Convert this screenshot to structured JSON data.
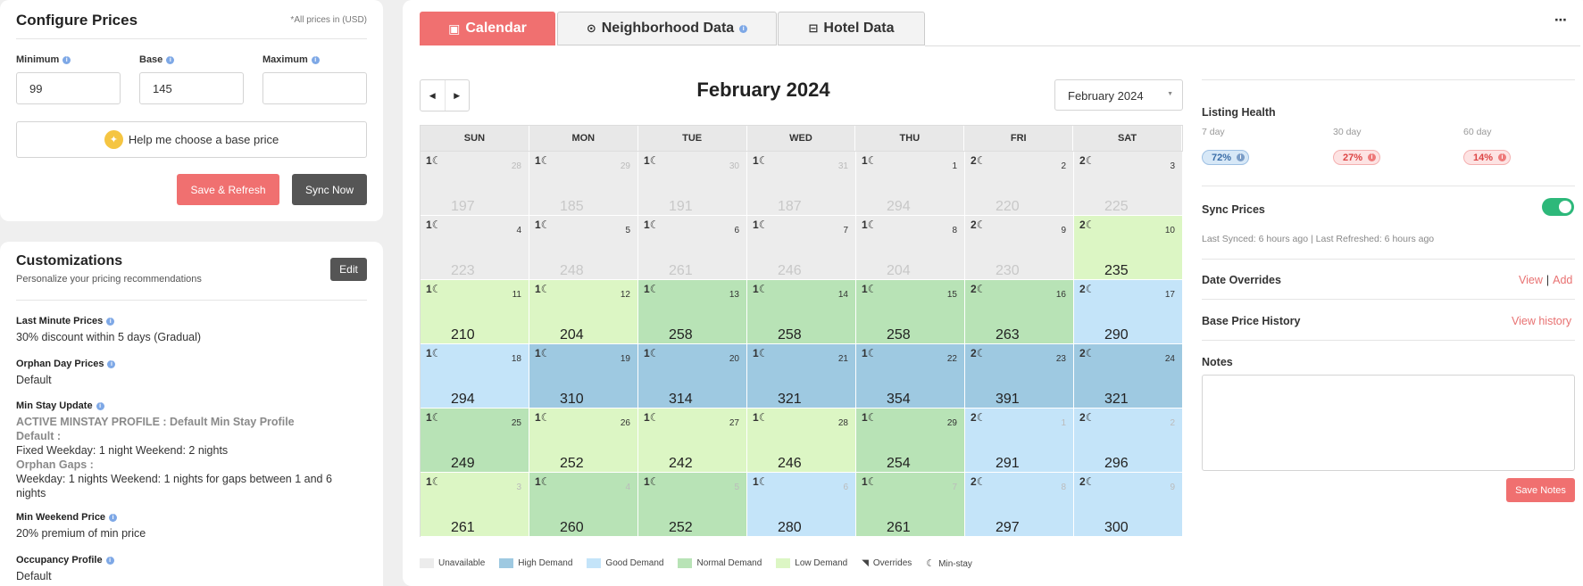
{
  "config": {
    "title": "Configure Prices",
    "currency_note": "*All prices in (USD)",
    "minimum_label": "Minimum",
    "base_label": "Base",
    "maximum_label": "Maximum",
    "minimum_value": "99",
    "base_value": "145",
    "maximum_value": "",
    "help_button": "Help me choose a base price",
    "save_refresh": "Save & Refresh",
    "sync_now": "Sync Now"
  },
  "customizations": {
    "title": "Customizations",
    "subtitle": "Personalize your pricing recommendations",
    "edit": "Edit",
    "last_minute": {
      "title": "Last Minute Prices",
      "value": "30% discount within 5 days (Gradual)"
    },
    "orphan_day": {
      "title": "Orphan Day Prices",
      "value": "Default"
    },
    "min_stay": {
      "title": "Min Stay Update",
      "profile": "ACTIVE MINSTAY PROFILE : Default Min Stay Profile",
      "default_label": "Default :",
      "default_value": "Fixed Weekday: 1 night Weekend: 2 nights",
      "orphan_label": "Orphan Gaps :",
      "orphan_value": "Weekday: 1 nights Weekend: 1 nights for gaps between 1 and 6 nights"
    },
    "min_weekend": {
      "title": "Min Weekend Price",
      "value": "20% premium of min price"
    },
    "occupancy": {
      "title": "Occupancy Profile",
      "value": "Default"
    }
  },
  "tabs": {
    "calendar": "Calendar",
    "neighborhood": "Neighborhood Data",
    "hotel": "Hotel Data"
  },
  "calendar": {
    "month_title": "February 2024",
    "month_select": "February 2024",
    "days_of_week": [
      "SUN",
      "MON",
      "TUE",
      "WED",
      "THU",
      "FRI",
      "SAT"
    ],
    "cells": [
      {
        "day": "28",
        "minstay": "1",
        "price": "197",
        "demand": "grey",
        "out": true
      },
      {
        "day": "29",
        "minstay": "1",
        "price": "185",
        "demand": "grey",
        "out": true
      },
      {
        "day": "30",
        "minstay": "1",
        "price": "191",
        "demand": "grey",
        "out": true
      },
      {
        "day": "31",
        "minstay": "1",
        "price": "187",
        "demand": "grey",
        "out": true
      },
      {
        "day": "1",
        "minstay": "1",
        "price": "294",
        "demand": "grey",
        "out": false
      },
      {
        "day": "2",
        "minstay": "2",
        "price": "220",
        "demand": "grey",
        "out": false
      },
      {
        "day": "3",
        "minstay": "2",
        "price": "225",
        "demand": "grey",
        "out": false
      },
      {
        "day": "4",
        "minstay": "1",
        "price": "223",
        "demand": "grey",
        "out": false
      },
      {
        "day": "5",
        "minstay": "1",
        "price": "248",
        "demand": "grey",
        "out": false
      },
      {
        "day": "6",
        "minstay": "1",
        "price": "261",
        "demand": "grey",
        "out": false
      },
      {
        "day": "7",
        "minstay": "1",
        "price": "246",
        "demand": "grey",
        "out": false
      },
      {
        "day": "8",
        "minstay": "1",
        "price": "204",
        "demand": "grey",
        "out": false
      },
      {
        "day": "9",
        "minstay": "2",
        "price": "230",
        "demand": "grey",
        "out": false
      },
      {
        "day": "10",
        "minstay": "2",
        "price": "235",
        "demand": "low",
        "out": false
      },
      {
        "day": "11",
        "minstay": "1",
        "price": "210",
        "demand": "low",
        "out": false
      },
      {
        "day": "12",
        "minstay": "1",
        "price": "204",
        "demand": "low",
        "out": false
      },
      {
        "day": "13",
        "minstay": "1",
        "price": "258",
        "demand": "normal",
        "out": false
      },
      {
        "day": "14",
        "minstay": "1",
        "price": "258",
        "demand": "normal",
        "out": false
      },
      {
        "day": "15",
        "minstay": "1",
        "price": "258",
        "demand": "normal",
        "out": false
      },
      {
        "day": "16",
        "minstay": "2",
        "price": "263",
        "demand": "normal",
        "out": false
      },
      {
        "day": "17",
        "minstay": "2",
        "price": "290",
        "demand": "good",
        "out": false
      },
      {
        "day": "18",
        "minstay": "1",
        "price": "294",
        "demand": "good",
        "out": false
      },
      {
        "day": "19",
        "minstay": "1",
        "price": "310",
        "demand": "high",
        "out": false
      },
      {
        "day": "20",
        "minstay": "1",
        "price": "314",
        "demand": "high",
        "out": false
      },
      {
        "day": "21",
        "minstay": "1",
        "price": "321",
        "demand": "high",
        "out": false
      },
      {
        "day": "22",
        "minstay": "1",
        "price": "354",
        "demand": "high",
        "out": false
      },
      {
        "day": "23",
        "minstay": "2",
        "price": "391",
        "demand": "high",
        "out": false
      },
      {
        "day": "24",
        "minstay": "2",
        "price": "321",
        "demand": "high",
        "out": false
      },
      {
        "day": "25",
        "minstay": "1",
        "price": "249",
        "demand": "normal",
        "out": false
      },
      {
        "day": "26",
        "minstay": "1",
        "price": "252",
        "demand": "low",
        "out": false
      },
      {
        "day": "27",
        "minstay": "1",
        "price": "242",
        "demand": "low",
        "out": false
      },
      {
        "day": "28",
        "minstay": "1",
        "price": "246",
        "demand": "low",
        "out": false
      },
      {
        "day": "29",
        "minstay": "1",
        "price": "254",
        "demand": "normal",
        "out": false
      },
      {
        "day": "1",
        "minstay": "2",
        "price": "291",
        "demand": "good",
        "out": true
      },
      {
        "day": "2",
        "minstay": "2",
        "price": "296",
        "demand": "good",
        "out": true
      },
      {
        "day": "3",
        "minstay": "1",
        "price": "261",
        "demand": "low",
        "out": true
      },
      {
        "day": "4",
        "minstay": "1",
        "price": "260",
        "demand": "normal",
        "out": true
      },
      {
        "day": "5",
        "minstay": "1",
        "price": "252",
        "demand": "normal",
        "out": true
      },
      {
        "day": "6",
        "minstay": "1",
        "price": "280",
        "demand": "good",
        "out": true
      },
      {
        "day": "7",
        "minstay": "1",
        "price": "261",
        "demand": "normal",
        "out": true
      },
      {
        "day": "8",
        "minstay": "2",
        "price": "297",
        "demand": "good",
        "out": true
      },
      {
        "day": "9",
        "minstay": "2",
        "price": "300",
        "demand": "good",
        "out": true
      }
    ]
  },
  "legend": [
    "Unavailable",
    "High Demand",
    "Good Demand",
    "Normal Demand",
    "Low Demand",
    "Overrides",
    "Min-stay"
  ],
  "colors": {
    "accent": "#f07070",
    "unavailable": "#ececec",
    "high": "#9ec9e1",
    "good": "#c4e4f9",
    "normal": "#b8e3b6",
    "low": "#dcf6c4",
    "toggle": "#2db87a"
  },
  "right_panel": {
    "listing_health": "Listing Health",
    "periods": [
      {
        "label": "7 day",
        "value": "72%"
      },
      {
        "label": "30 day",
        "value": "27%"
      },
      {
        "label": "60 day",
        "value": "14%"
      }
    ],
    "sync_prices": "Sync Prices",
    "sync_enabled": true,
    "sync_meta": "Last Synced: 6 hours ago | Last Refreshed: 6 hours ago",
    "date_overrides": "Date Overrides",
    "view": "View",
    "separator": "|",
    "add": "Add",
    "base_price_history": "Base Price History",
    "view_history": "View history",
    "notes": "Notes",
    "notes_value": "",
    "save_notes": "Save Notes"
  }
}
